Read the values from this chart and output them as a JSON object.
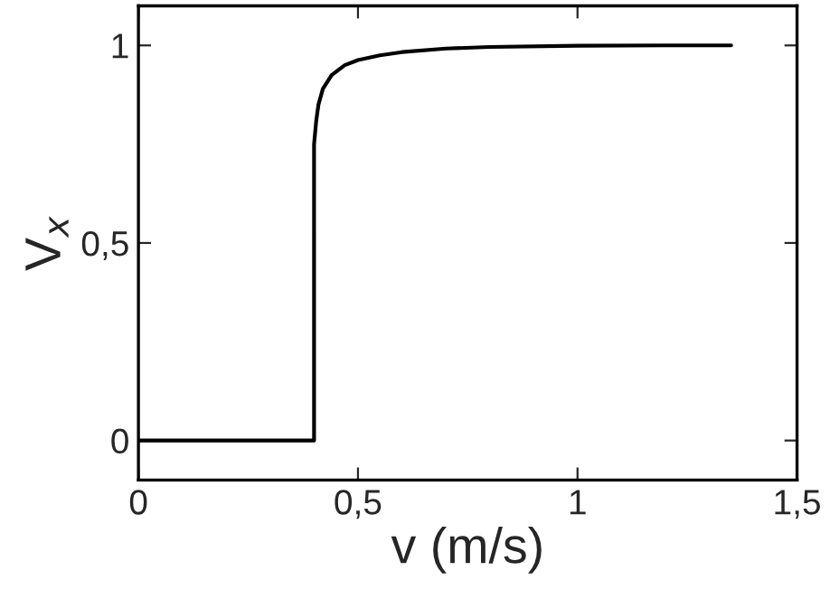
{
  "chart_data": {
    "type": "line",
    "xlabel": "v (m/s)",
    "ylabel": "V$_{x}$",
    "x": [
      0,
      0.4,
      0.4,
      0.405,
      0.41,
      0.42,
      0.44,
      0.47,
      0.5,
      0.55,
      0.6,
      0.7,
      0.8,
      1.0,
      1.2,
      1.35
    ],
    "series": [
      {
        "color": "#000000",
        "values": [
          0,
          0,
          0.75,
          0.81,
          0.85,
          0.89,
          0.925,
          0.95,
          0.963,
          0.975,
          0.983,
          0.992,
          0.996,
          0.999,
          1,
          1
        ]
      }
    ],
    "xlim": [
      0,
      1.5
    ],
    "ylim": [
      -0.1,
      1.1
    ],
    "xticks": [
      0,
      {
        "value": 0.5,
        "label": "0,5"
      },
      1,
      {
        "value": 1.5,
        "label": "1,5"
      }
    ],
    "yticks": [
      0,
      {
        "value": 0.5,
        "label": "0,5"
      },
      1
    ],
    "grid": false,
    "legend": false
  }
}
